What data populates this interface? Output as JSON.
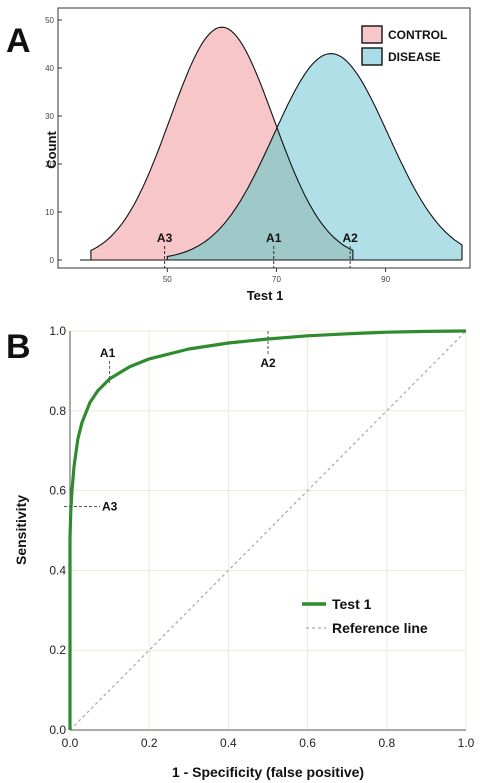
{
  "panels": {
    "a_letter": "A",
    "b_letter": "B"
  },
  "colors": {
    "control_fill": "#f7c6c9",
    "disease_fill": "#a9dce6",
    "overlap_fill": "#9fc9c8",
    "roc_line": "#2e8b2e",
    "reference_line": "#a8a8a8",
    "grid": "#ececd2"
  },
  "chart_data": [
    {
      "type": "area",
      "xlabel": "Test 1",
      "ylabel": "Count",
      "xlim": [
        34,
        104
      ],
      "ylim": [
        0,
        50
      ],
      "xticks": [
        50,
        70,
        90
      ],
      "yticks": [
        0,
        10,
        20,
        30,
        40,
        50
      ],
      "grid": false,
      "legend_position": "top-right",
      "series": [
        {
          "name": "CONTROL",
          "color": "#f7c6c9",
          "mean": 60,
          "sd": 9.5,
          "peak": 48.5,
          "x_range": [
            36,
            84
          ]
        },
        {
          "name": "DISEASE",
          "color": "#a9dce6",
          "mean": 80,
          "sd": 10.5,
          "peak": 43,
          "x_range": [
            50,
            104
          ]
        }
      ],
      "annotations": [
        {
          "label": "A3",
          "x": 49.5
        },
        {
          "label": "A1",
          "x": 69.5
        },
        {
          "label": "A2",
          "x": 83.5
        }
      ]
    },
    {
      "type": "line",
      "xlabel": "1 - Specificity (false positive)",
      "ylabel": "Sensitivity",
      "xlim": [
        0,
        1
      ],
      "ylim": [
        0,
        1
      ],
      "xticks": [
        "0.0",
        "0.2",
        "0.4",
        "0.6",
        "0.8",
        "1.0"
      ],
      "yticks": [
        "0.0",
        "0.2",
        "0.4",
        "0.6",
        "0.8",
        "1.0"
      ],
      "grid": true,
      "legend_position": "bottom-right",
      "series": [
        {
          "name": "Test 1",
          "color": "#2e8b2e",
          "x": [
            0,
            0,
            0.002,
            0.005,
            0.01,
            0.02,
            0.03,
            0.05,
            0.07,
            0.1,
            0.15,
            0.2,
            0.3,
            0.4,
            0.5,
            0.6,
            0.7,
            0.8,
            0.9,
            1.0
          ],
          "y": [
            0,
            0.48,
            0.55,
            0.6,
            0.66,
            0.73,
            0.77,
            0.82,
            0.85,
            0.88,
            0.91,
            0.93,
            0.955,
            0.97,
            0.98,
            0.988,
            0.993,
            0.997,
            0.999,
            1.0
          ]
        },
        {
          "name": "Reference line",
          "color": "#a8a8a8",
          "x": [
            0,
            1
          ],
          "y": [
            0,
            1
          ]
        }
      ],
      "annotations": [
        {
          "label": "A1",
          "x": 0.1,
          "y": 0.88
        },
        {
          "label": "A2",
          "x": 0.5,
          "y": 0.98
        },
        {
          "label": "A3",
          "x": 0,
          "y": 0.56
        }
      ]
    }
  ]
}
